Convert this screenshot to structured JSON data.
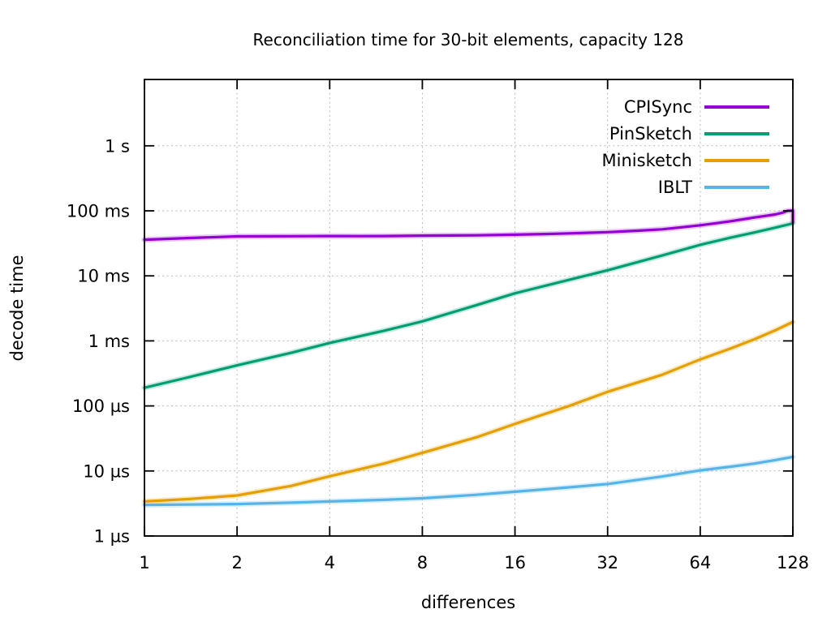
{
  "title": "Reconciliation time for 30-bit elements, capacity 128",
  "chart_data": {
    "type": "line",
    "title": "Reconciliation time for 30-bit elements, capacity 128",
    "xlabel": "differences",
    "ylabel": "decode time",
    "x_scale": "log2",
    "y_scale": "log10",
    "xlim": [
      1,
      128
    ],
    "ylim_us": [
      1,
      10500000
    ],
    "grid": true,
    "legend_position": "top-right",
    "x_ticks": [
      {
        "value": 1,
        "label": "1"
      },
      {
        "value": 2,
        "label": "2"
      },
      {
        "value": 4,
        "label": "4"
      },
      {
        "value": 8,
        "label": "8"
      },
      {
        "value": 16,
        "label": "16"
      },
      {
        "value": 32,
        "label": "32"
      },
      {
        "value": 64,
        "label": "64"
      },
      {
        "value": 128,
        "label": "128"
      }
    ],
    "y_ticks": [
      {
        "value_us": 1,
        "label": "1 µs"
      },
      {
        "value_us": 10,
        "label": "10 µs"
      },
      {
        "value_us": 100,
        "label": "100 µs"
      },
      {
        "value_us": 1000,
        "label": "1 ms"
      },
      {
        "value_us": 10000,
        "label": "10 ms"
      },
      {
        "value_us": 100000,
        "label": "100 ms"
      },
      {
        "value_us": 1000000,
        "label": "1 s"
      }
    ],
    "series": [
      {
        "name": "CPISync",
        "color": "#9400d3",
        "unit": "microseconds",
        "points": [
          [
            1,
            36000
          ],
          [
            1.4,
            38200
          ],
          [
            2,
            40500
          ],
          [
            2.5,
            40600
          ],
          [
            3,
            40700
          ],
          [
            4,
            41000
          ],
          [
            5,
            40800
          ],
          [
            6,
            41000
          ],
          [
            8,
            41500
          ],
          [
            10,
            41800
          ],
          [
            12,
            42000
          ],
          [
            16,
            43000
          ],
          [
            20,
            44000
          ],
          [
            24,
            45000
          ],
          [
            28,
            46000
          ],
          [
            32,
            47000
          ],
          [
            40,
            49500
          ],
          [
            48,
            52000
          ],
          [
            56,
            56000
          ],
          [
            64,
            60000
          ],
          [
            72,
            64500
          ],
          [
            80,
            69000
          ],
          [
            88,
            74000
          ],
          [
            96,
            79000
          ],
          [
            104,
            83500
          ],
          [
            112,
            88000
          ],
          [
            118,
            93000
          ],
          [
            123,
            100000
          ],
          [
            128,
            101000
          ],
          [
            128,
            68000
          ]
        ]
      },
      {
        "name": "PinSketch",
        "color": "#009e73",
        "unit": "microseconds",
        "points": [
          [
            1,
            190
          ],
          [
            1.4,
            278
          ],
          [
            2,
            420
          ],
          [
            3,
            655
          ],
          [
            4,
            930
          ],
          [
            6,
            1430
          ],
          [
            8,
            2000
          ],
          [
            12,
            3550
          ],
          [
            16,
            5400
          ],
          [
            24,
            8700
          ],
          [
            32,
            12200
          ],
          [
            48,
            20500
          ],
          [
            64,
            30000
          ],
          [
            80,
            38500
          ],
          [
            96,
            46500
          ],
          [
            112,
            55000
          ],
          [
            128,
            64000
          ]
        ]
      },
      {
        "name": "Minisketch",
        "color": "#e69f00",
        "unit": "microseconds",
        "points": [
          [
            1,
            3.4
          ],
          [
            1.4,
            3.7
          ],
          [
            2,
            4.2
          ],
          [
            3,
            5.9
          ],
          [
            4,
            8.3
          ],
          [
            6,
            13
          ],
          [
            8,
            19
          ],
          [
            12,
            33
          ],
          [
            16,
            53
          ],
          [
            24,
            100
          ],
          [
            32,
            165
          ],
          [
            48,
            300
          ],
          [
            64,
            520
          ],
          [
            80,
            760
          ],
          [
            96,
            1060
          ],
          [
            112,
            1450
          ],
          [
            128,
            1960
          ]
        ]
      },
      {
        "name": "IBLT",
        "color": "#56b4e9",
        "unit": "microseconds",
        "points": [
          [
            1,
            3.0
          ],
          [
            1.4,
            3.05
          ],
          [
            2,
            3.1
          ],
          [
            3,
            3.25
          ],
          [
            4,
            3.4
          ],
          [
            6,
            3.6
          ],
          [
            8,
            3.8
          ],
          [
            12,
            4.3
          ],
          [
            16,
            4.8
          ],
          [
            24,
            5.6
          ],
          [
            32,
            6.3
          ],
          [
            48,
            8.2
          ],
          [
            64,
            10.2
          ],
          [
            80,
            11.6
          ],
          [
            96,
            13.0
          ],
          [
            112,
            14.7
          ],
          [
            128,
            16.5
          ]
        ]
      }
    ]
  }
}
